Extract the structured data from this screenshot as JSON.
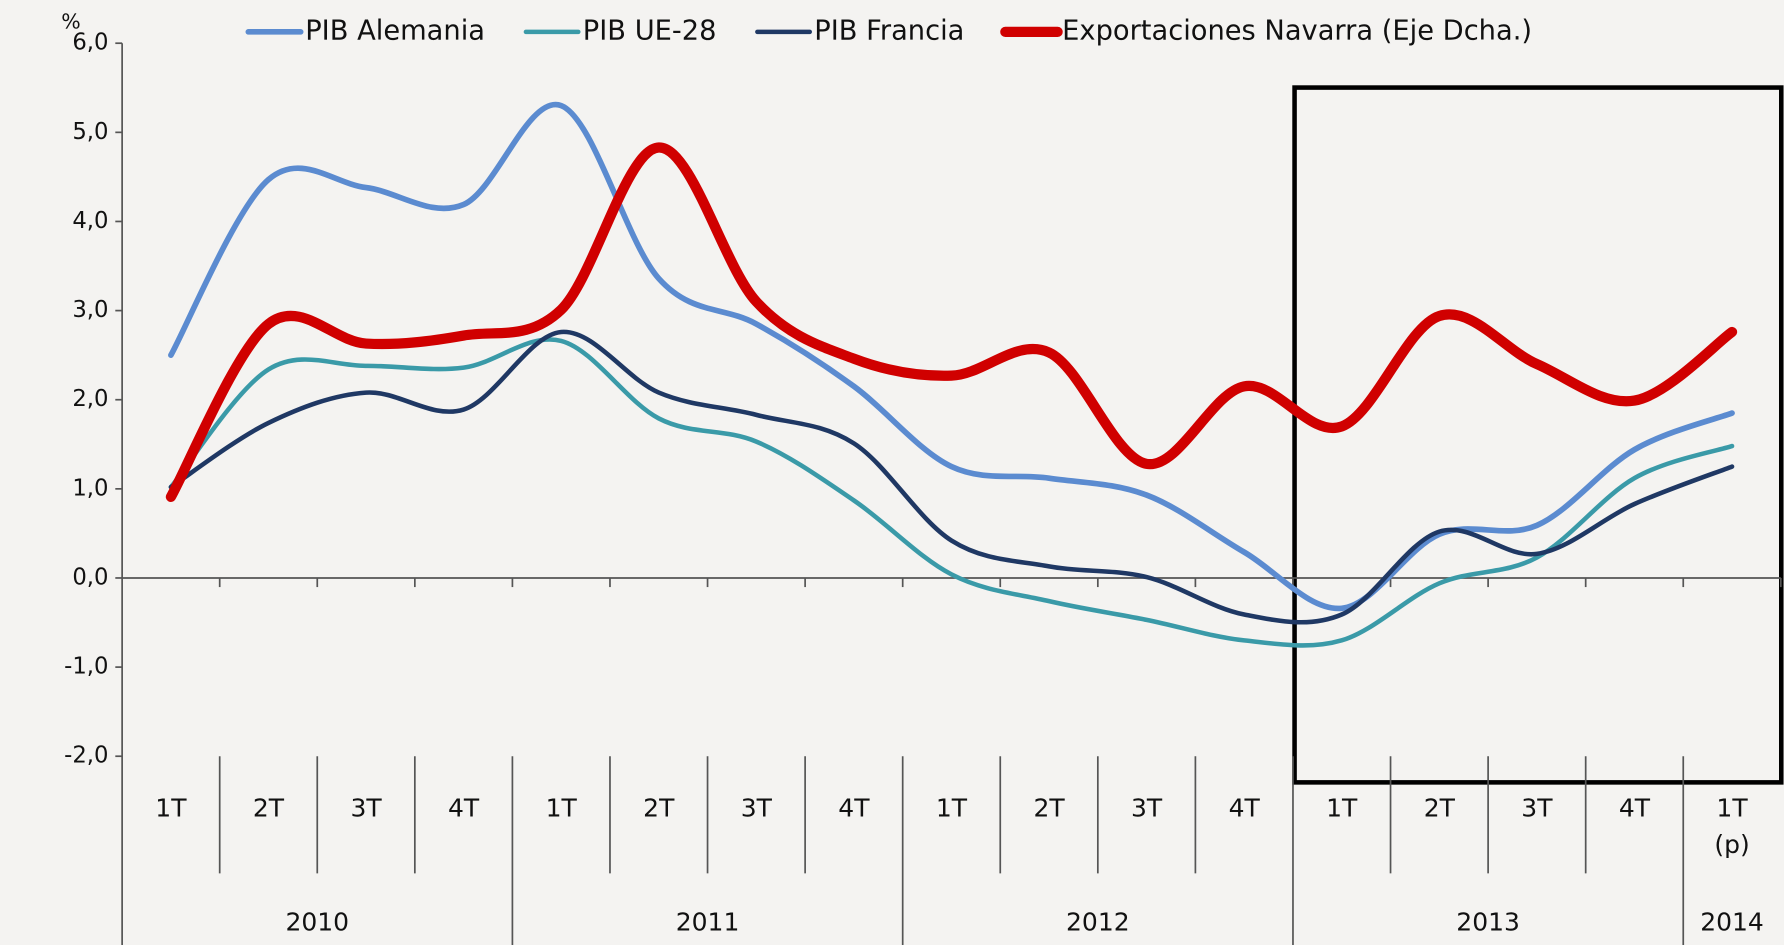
{
  "chart_data": {
    "type": "line",
    "unit_label": "%",
    "categories": [
      "1T",
      "2T",
      "3T",
      "4T",
      "1T",
      "2T",
      "3T",
      "4T",
      "1T",
      "2T",
      "3T",
      "4T",
      "1T",
      "2T",
      "3T",
      "4T",
      "1T (p)"
    ],
    "years": [
      "2010",
      null,
      null,
      null,
      "2011",
      null,
      null,
      null,
      "2012",
      null,
      null,
      null,
      "2013",
      null,
      null,
      null,
      "2014"
    ],
    "ylim": [
      -2,
      6
    ],
    "yticks": [
      {
        "value": -2,
        "label": "-2,0"
      },
      {
        "value": -1,
        "label": "-1,0"
      },
      {
        "value": 0,
        "label": "0,0"
      },
      {
        "value": 1,
        "label": "1,0"
      },
      {
        "value": 2,
        "label": "2,0"
      },
      {
        "value": 3,
        "label": "3,0"
      },
      {
        "value": 4,
        "label": "4,0"
      },
      {
        "value": 5,
        "label": "5,0"
      },
      {
        "value": 6,
        "label": "6,0"
      }
    ],
    "series": [
      {
        "name": "PIB Alemania",
        "color": "#5b8bd0",
        "values": [
          2.5,
          4.47,
          4.38,
          4.19,
          5.3,
          3.36,
          2.85,
          2.15,
          1.25,
          1.12,
          0.93,
          0.29,
          -0.34,
          0.49,
          0.59,
          1.44,
          1.85
        ]
      },
      {
        "name": "PIB UE-28",
        "color": "#3a9aa8",
        "values": [
          1.02,
          2.34,
          2.38,
          2.36,
          2.66,
          1.79,
          1.53,
          0.87,
          0.04,
          -0.26,
          -0.47,
          -0.7,
          -0.7,
          -0.06,
          0.23,
          1.12,
          1.48
        ]
      },
      {
        "name": "PIB Francia",
        "color": "#1f3864",
        "values": [
          1.02,
          1.74,
          2.08,
          1.89,
          2.76,
          2.08,
          1.83,
          1.51,
          0.42,
          0.13,
          0.01,
          -0.41,
          -0.41,
          0.52,
          0.27,
          0.83,
          1.25
        ]
      },
      {
        "name": "Exportaciones Navarra (Eje Dcha.)",
        "color": "#d00000",
        "values": [
          0.91,
          2.85,
          2.63,
          2.72,
          3.01,
          4.83,
          3.1,
          2.46,
          2.27,
          2.53,
          1.28,
          2.15,
          1.7,
          2.94,
          2.4,
          1.99,
          2.76
        ]
      }
    ]
  }
}
